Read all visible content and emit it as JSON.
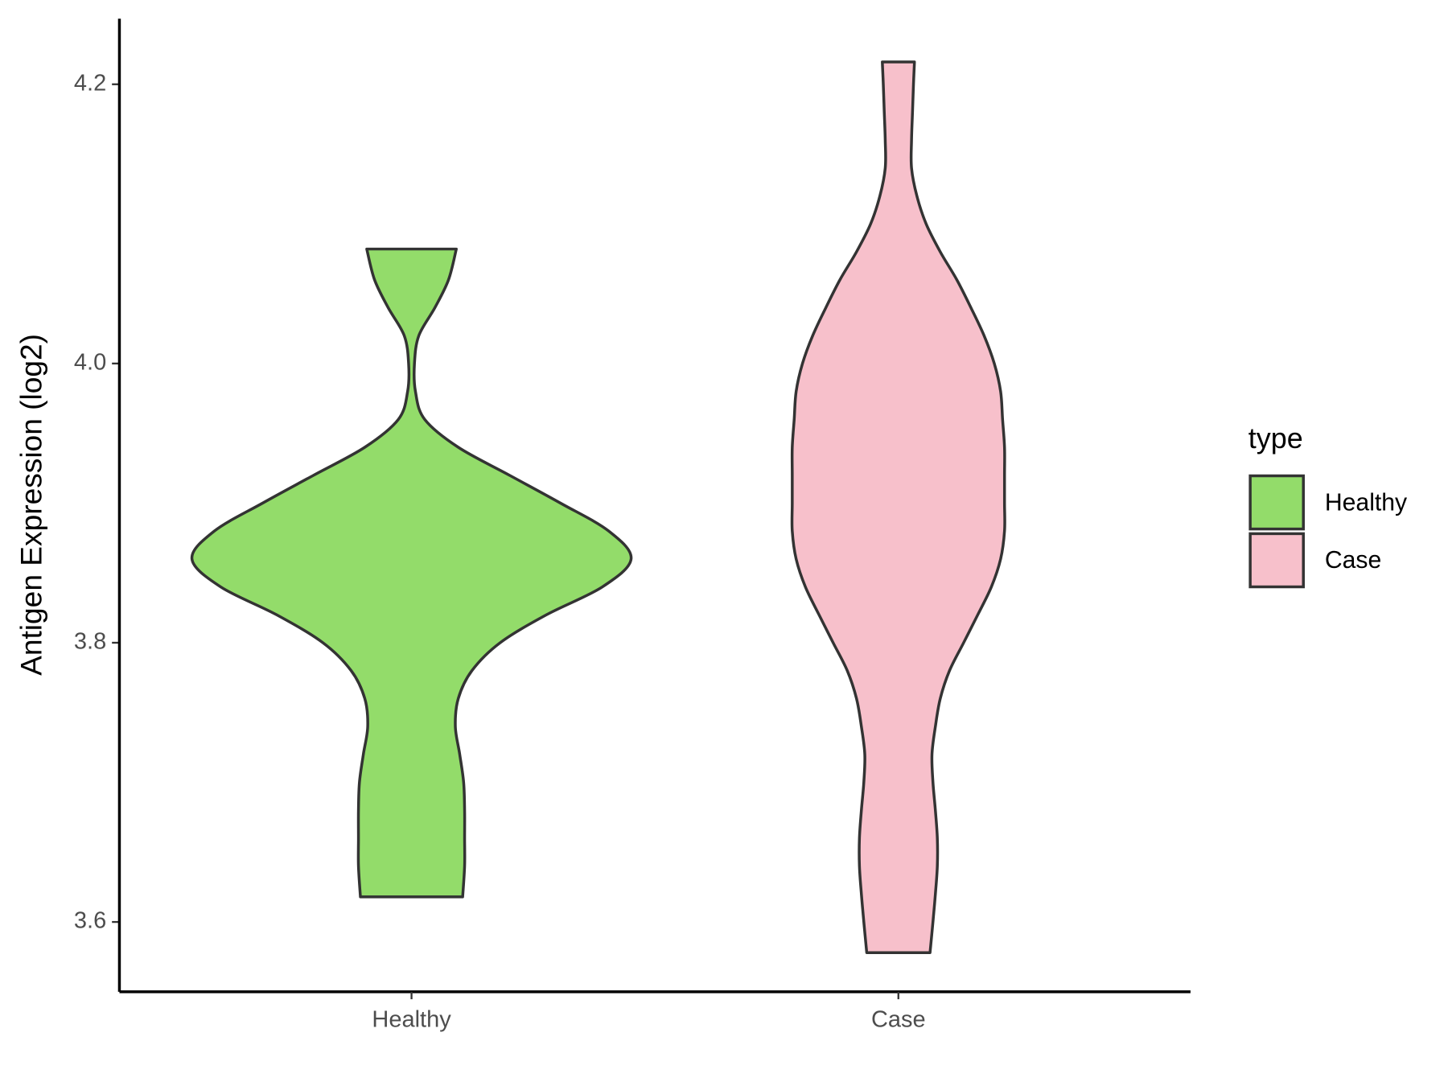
{
  "chart_data": {
    "type": "violin",
    "y_label": "Antigen Expression (log2)",
    "categories": [
      "Healthy",
      "Case"
    ],
    "series": [
      {
        "name": "Healthy",
        "color": "#93dc6a",
        "values": [
          3.618,
          3.64,
          3.66,
          3.68,
          3.7,
          3.72,
          3.74,
          3.76,
          3.78,
          3.8,
          3.82,
          3.84,
          3.86,
          3.88,
          3.9,
          3.92,
          3.94,
          3.96,
          3.98,
          4.0,
          4.02,
          4.04,
          4.06,
          4.082
        ],
        "widths": [
          0.105,
          0.109,
          0.109,
          0.109,
          0.107,
          0.099,
          0.09,
          0.096,
          0.124,
          0.182,
          0.277,
          0.392,
          0.451,
          0.405,
          0.306,
          0.201,
          0.096,
          0.027,
          0.008,
          0.006,
          0.015,
          0.048,
          0.076,
          0.092
        ]
      },
      {
        "name": "Case",
        "color": "#f7c0cb",
        "values": [
          3.578,
          3.6,
          3.62,
          3.64,
          3.66,
          3.68,
          3.7,
          3.72,
          3.74,
          3.76,
          3.78,
          3.8,
          3.82,
          3.84,
          3.86,
          3.88,
          3.9,
          3.92,
          3.94,
          3.96,
          3.98,
          4.0,
          4.02,
          4.04,
          4.06,
          4.08,
          4.1,
          4.12,
          4.14,
          4.16,
          4.18,
          4.2,
          4.216
        ],
        "widths": [
          0.065,
          0.071,
          0.076,
          0.08,
          0.08,
          0.076,
          0.071,
          0.069,
          0.076,
          0.086,
          0.105,
          0.134,
          0.163,
          0.191,
          0.21,
          0.218,
          0.218,
          0.218,
          0.218,
          0.214,
          0.21,
          0.197,
          0.176,
          0.149,
          0.12,
          0.086,
          0.057,
          0.038,
          0.027,
          0.027,
          0.029,
          0.031,
          0.033
        ]
      }
    ],
    "ylim": [
      3.55,
      4.247
    ],
    "yticks": [
      3.6,
      3.8,
      {
        "value": 4.0,
        "label": "4.0"
      },
      4.2
    ],
    "legend_title": "type",
    "legend_position": "right"
  }
}
